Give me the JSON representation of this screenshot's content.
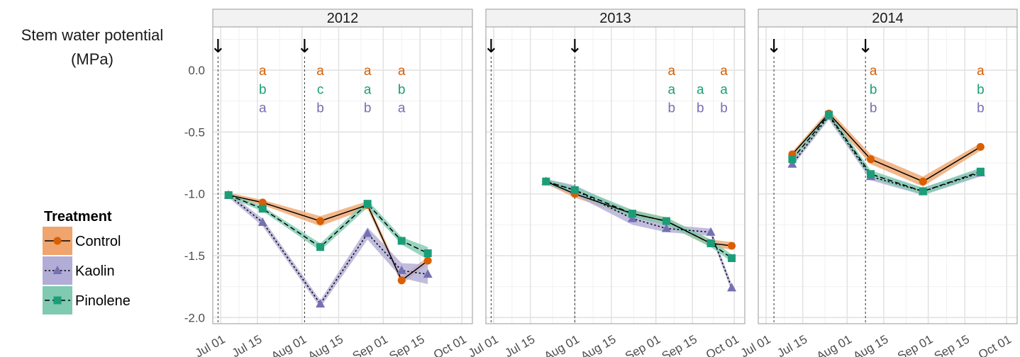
{
  "chart_data": {
    "type": "line",
    "ylabel_lines": [
      "Stem water potential",
      "(MPa)"
    ],
    "ylim": [
      -2.05,
      0.35
    ],
    "yticks": [
      0.0,
      -0.5,
      -1.0,
      -1.5,
      -2.0
    ],
    "ytick_labels": [
      "0.0",
      "-0.5",
      "-1.0",
      "-1.5",
      "-2.0"
    ],
    "xtick_labels": [
      "Jul 01",
      "Jul 15",
      "Aug 01",
      "Aug 15",
      "Sep 01",
      "Sep 15",
      "Oct 01"
    ],
    "xtick_days": [
      0,
      14,
      31,
      45,
      62,
      76,
      92
    ],
    "xlim_days": [
      -3,
      96
    ],
    "grid": true,
    "legend": {
      "title": "Treatment",
      "placement": "left",
      "entries": [
        {
          "label": "Control",
          "color": "#D95F02",
          "band": "#EFA56D",
          "marker": "circle",
          "line": "solid"
        },
        {
          "label": "Kaolin",
          "color": "#7570B3",
          "band": "#B1ADD6",
          "marker": "triangle",
          "line": "dotted"
        },
        {
          "label": "Pinolene",
          "color": "#1B9E77",
          "band": "#7FCAB0",
          "marker": "square",
          "line": "dashed"
        }
      ]
    },
    "panels": [
      {
        "strip": "2012",
        "arrows": [
          -1,
          32
        ],
        "series": [
          {
            "name": "Control",
            "x": [
              3,
              16,
              38,
              56,
              69,
              79
            ],
            "y": [
              -1.01,
              -1.07,
              -1.22,
              -1.09,
              -1.7,
              -1.54
            ],
            "band": [
              0.02,
              0.02,
              0.04,
              0.03,
              0.03,
              0.03
            ]
          },
          {
            "name": "Kaolin",
            "x": [
              3,
              16,
              38,
              56,
              69,
              79
            ],
            "y": [
              -1.01,
              -1.23,
              -1.89,
              -1.32,
              -1.62,
              -1.65
            ],
            "band": [
              0.02,
              0.03,
              0.03,
              0.05,
              0.06,
              0.08
            ]
          },
          {
            "name": "Pinolene",
            "x": [
              3,
              16,
              38,
              56,
              69,
              79
            ],
            "y": [
              -1.01,
              -1.12,
              -1.43,
              -1.08,
              -1.38,
              -1.48
            ],
            "band": [
              0.02,
              0.02,
              0.03,
              0.03,
              0.03,
              0.05
            ]
          }
        ],
        "letters": [
          {
            "x": 16,
            "c": "a",
            "k": "a",
            "p": "b"
          },
          {
            "x": 38,
            "c": "a",
            "k": "b",
            "p": "c"
          },
          {
            "x": 56,
            "c": "a",
            "k": "b",
            "p": "a"
          },
          {
            "x": 69,
            "c": "a",
            "k": "a",
            "p": "b"
          }
        ]
      },
      {
        "strip": "2013",
        "arrows": [
          -1,
          31
        ],
        "series": [
          {
            "name": "Control",
            "x": [
              20,
              31,
              53,
              66,
              83,
              91
            ],
            "y": [
              -0.9,
              -1.0,
              -1.16,
              -1.22,
              -1.4,
              -1.42
            ],
            "band": [
              0.02,
              0.03,
              0.03,
              0.03,
              0.03,
              0.03
            ]
          },
          {
            "name": "Kaolin",
            "x": [
              20,
              31,
              53,
              66,
              83,
              91
            ],
            "y": [
              -0.9,
              -0.97,
              -1.2,
              -1.28,
              -1.31,
              -1.76
            ],
            "band": [
              0.02,
              0.04,
              0.05,
              0.03,
              0.03,
              0.03
            ]
          },
          {
            "name": "Pinolene",
            "x": [
              20,
              31,
              53,
              66,
              83,
              91
            ],
            "y": [
              -0.9,
              -0.97,
              -1.16,
              -1.22,
              -1.4,
              -1.52
            ],
            "band": [
              0.02,
              0.03,
              0.03,
              0.03,
              0.03,
              0.03
            ]
          }
        ],
        "letters": [
          {
            "x": 68,
            "c": "a",
            "k": "b",
            "p": "a"
          },
          {
            "x": 79,
            "c": "",
            "k": "b",
            "p": "a"
          },
          {
            "x": 88,
            "c": "a",
            "k": "b",
            "p": "a"
          }
        ]
      },
      {
        "strip": "2014",
        "arrows": [
          3,
          38
        ],
        "series": [
          {
            "name": "Control",
            "x": [
              10,
              24,
              40,
              60,
              82
            ],
            "y": [
              -0.68,
              -0.35,
              -0.72,
              -0.9,
              -0.62
            ],
            "band": [
              0.02,
              0.03,
              0.04,
              0.04,
              0.03
            ]
          },
          {
            "name": "Kaolin",
            "x": [
              10,
              24,
              40,
              60,
              82
            ],
            "y": [
              -0.76,
              -0.37,
              -0.86,
              -0.98,
              -0.83
            ],
            "band": [
              0.02,
              0.03,
              0.03,
              0.03,
              0.03
            ]
          },
          {
            "name": "Pinolene",
            "x": [
              10,
              24,
              40,
              60,
              82
            ],
            "y": [
              -0.72,
              -0.36,
              -0.84,
              -0.98,
              -0.82
            ],
            "band": [
              0.02,
              0.03,
              0.03,
              0.03,
              0.03
            ]
          }
        ],
        "letters": [
          {
            "x": 41,
            "c": "a",
            "k": "b",
            "p": "b"
          },
          {
            "x": 82,
            "c": "a",
            "k": "b",
            "p": "b"
          }
        ]
      }
    ]
  }
}
